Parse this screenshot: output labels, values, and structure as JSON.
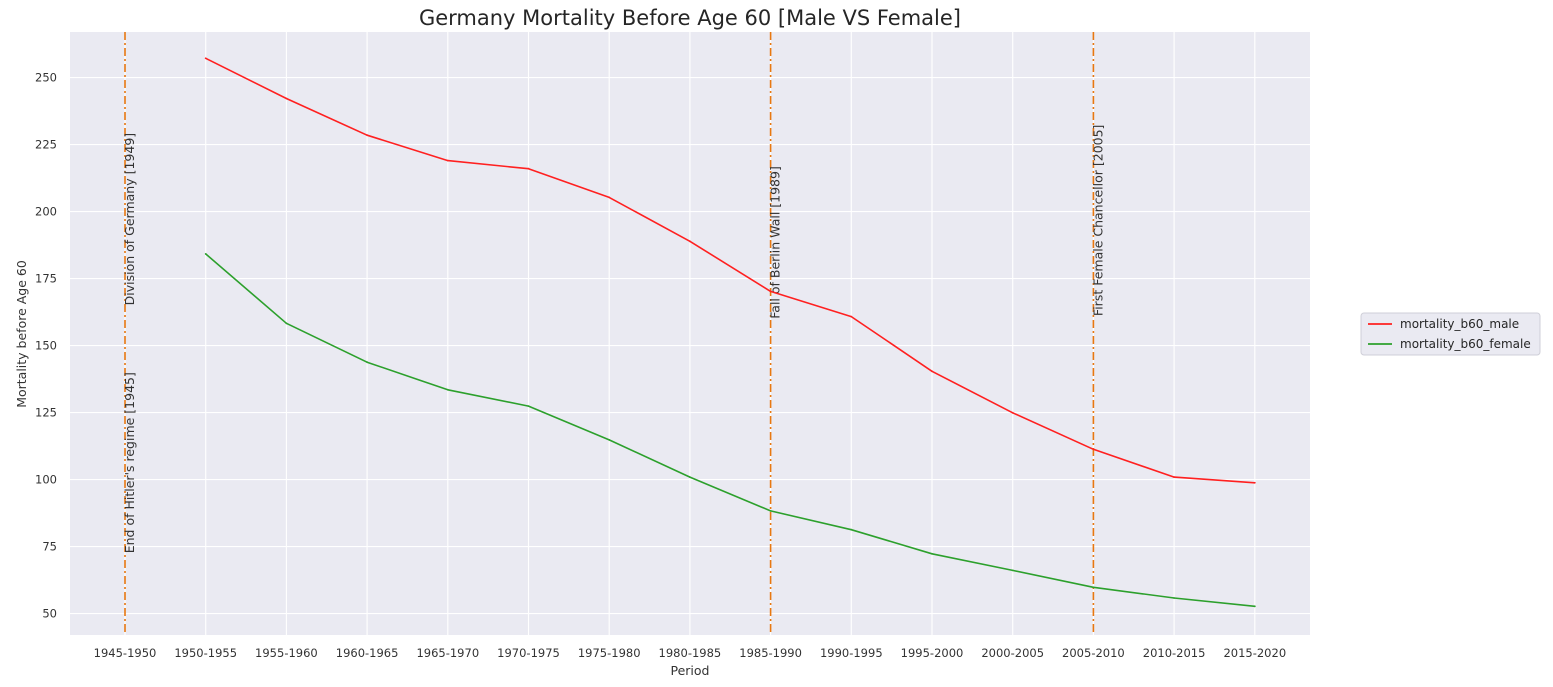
{
  "chart_data": {
    "type": "line",
    "title": "Germany Mortality Before Age 60 [Male VS Female]",
    "xlabel": "Period",
    "ylabel": "Mortality before Age 60",
    "categories": [
      "1945-1950",
      "1950-1955",
      "1955-1960",
      "1960-1965",
      "1965-1970",
      "1970-1975",
      "1975-1980",
      "1980-1985",
      "1985-1990",
      "1990-1995",
      "1995-2000",
      "2000-2005",
      "2005-2010",
      "2010-2015",
      "2015-2020"
    ],
    "yticks": [
      50,
      75,
      100,
      125,
      150,
      175,
      200,
      225,
      250
    ],
    "ylim": [
      42,
      267
    ],
    "grid": true,
    "legend_position": "right",
    "series": [
      {
        "name": "mortality_b60_male",
        "color": "#ff2020",
        "values": [
          null,
          257.2,
          242.2,
          228.5,
          219.0,
          216.0,
          205.3,
          188.9,
          170.2,
          160.8,
          140.4,
          124.9,
          111.3,
          100.9,
          98.8
        ]
      },
      {
        "name": "mortality_b60_female",
        "color": "#2ca02c",
        "values": [
          null,
          184.2,
          158.3,
          143.8,
          133.5,
          127.4,
          114.8,
          100.9,
          88.3,
          81.3,
          72.3,
          66.1,
          59.8,
          55.8,
          52.7
        ]
      }
    ],
    "events": [
      {
        "category": "1945-1950",
        "label": "End of Hitler's regime [1945]",
        "label_y": 72.5,
        "color": "#e87811"
      },
      {
        "category": "1945-1950",
        "label": "Division of Germany [1949]",
        "label_y": 165,
        "color": "#e87811"
      },
      {
        "category": "1985-1990",
        "label": "Fall of Berlin Wall [1989]",
        "label_y": 160,
        "color": "#e87811"
      },
      {
        "category": "2005-2010",
        "label": "First Female Chancellor [2005]",
        "label_y": 161,
        "color": "#e87811"
      }
    ]
  }
}
